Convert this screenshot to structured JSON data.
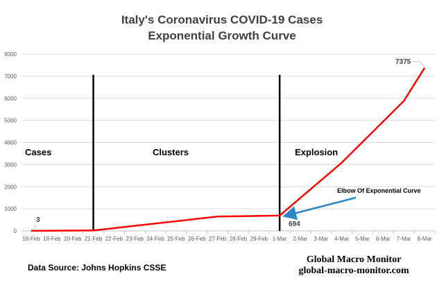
{
  "chart_data": {
    "type": "line",
    "title": "Italy's Coronavirus COVID-19 Cases",
    "subtitle": "Exponential Growth Curve",
    "categories": [
      "18-Feb",
      "19-Feb",
      "20-Feb",
      "21-Feb",
      "22-Feb",
      "23-Feb",
      "24-Feb",
      "25-Feb",
      "26-Feb",
      "27-Feb",
      "28-Feb",
      "29-Feb",
      "1-Mar",
      "2-Mar",
      "3-Mar",
      "4-Mar",
      "5-Mar",
      "6-Mar",
      "7-Mar",
      "8-Mar"
    ],
    "series": [
      {
        "color": "#ff0000",
        "points": [
          [
            "18-Feb",
            3
          ],
          [
            "21-Feb",
            20
          ],
          [
            "27-Feb",
            650
          ],
          [
            "1-Mar",
            694
          ],
          [
            "4-Mar",
            3089
          ],
          [
            "7-Mar",
            5883
          ],
          [
            "8-Mar",
            7375
          ]
        ]
      }
    ],
    "ylim": [
      0,
      8000
    ],
    "yticks": [
      0,
      1000,
      2000,
      3000,
      4000,
      5000,
      6000,
      7000,
      8000
    ],
    "grid": true,
    "data_labels": [
      {
        "x": "18-Feb",
        "value": "3"
      },
      {
        "x": "1-Mar",
        "value": "694"
      },
      {
        "x": "8-Mar",
        "value": "7375"
      }
    ],
    "phase_lines": [
      "21-Feb",
      "1-Mar"
    ],
    "phases": [
      "Cases",
      "Clusters",
      "Explosion"
    ],
    "annotation": {
      "text": "Elbow Of Exponential Curve",
      "color": "#2e86c8",
      "points_to": "1-Mar"
    },
    "source": "Data Source:  Johns Hopkins CSSE",
    "brand": "Global Macro Monitor",
    "brand_url": "global-macro-monitor.com"
  }
}
